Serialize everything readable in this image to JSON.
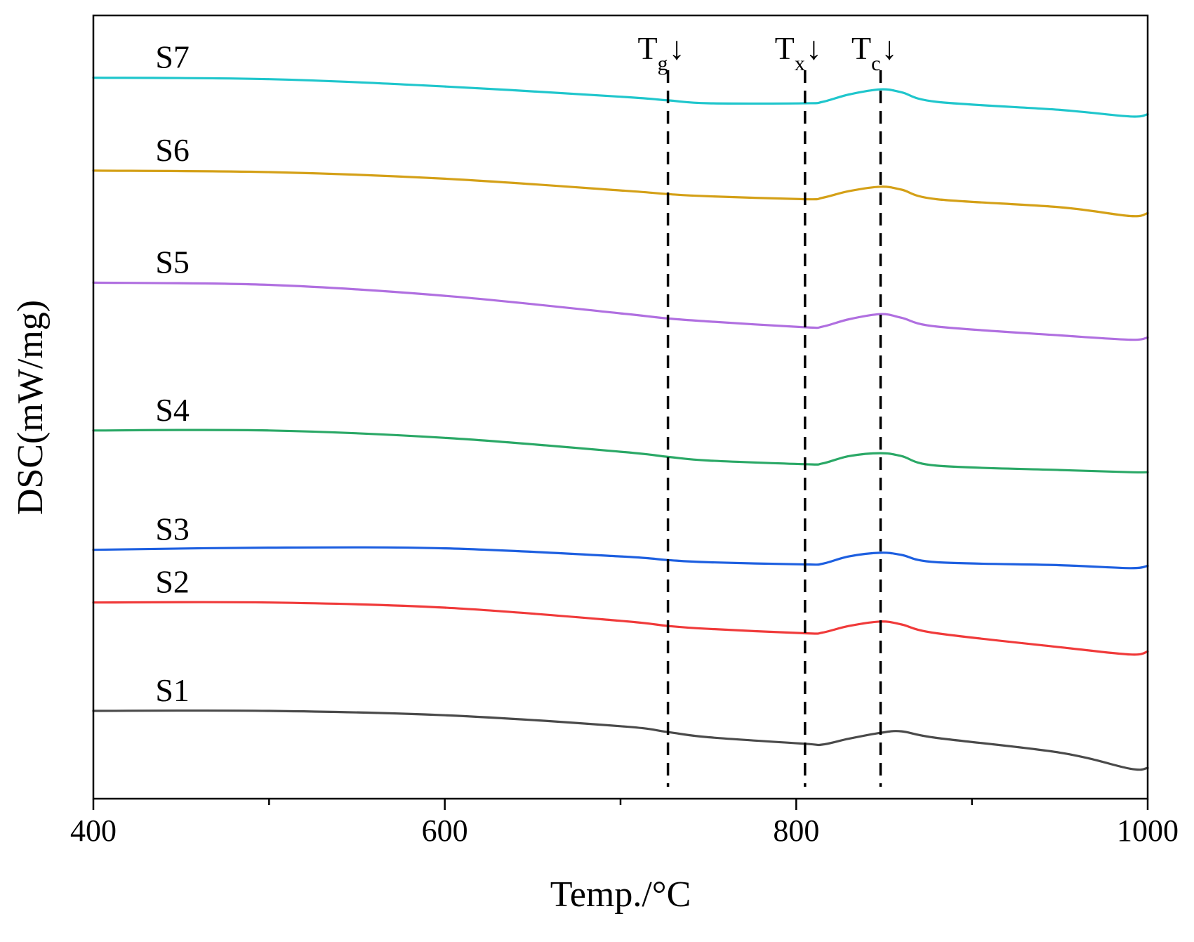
{
  "chart_data": {
    "type": "line",
    "title": "",
    "xlabel": "Temp./°C",
    "ylabel": "DSC(mW/mg)",
    "xlim": [
      400,
      1000
    ],
    "x_ticks": [
      400,
      600,
      800,
      1000
    ],
    "x_minor_ticks": [
      500,
      700,
      900
    ],
    "y_ticks_shown": false,
    "markers": [
      {
        "name": "Tg",
        "main": "T",
        "sub": "g",
        "arrow": "↓",
        "x": 727
      },
      {
        "name": "Tx",
        "main": "T",
        "sub": "x",
        "arrow": "↓",
        "x": 805
      },
      {
        "name": "Tc",
        "main": "T",
        "sub": "c",
        "arrow": "↓",
        "x": 848
      }
    ],
    "x": [
      400,
      500,
      600,
      700,
      727,
      750,
      805,
      815,
      830,
      848,
      860,
      880,
      950,
      990,
      1000
    ],
    "series": [
      {
        "name": "S7",
        "color": "#1fc6cc",
        "values": [
          86.5,
          86.3,
          85.3,
          83.9,
          83.4,
          83.0,
          83.0,
          83.2,
          84.2,
          84.9,
          84.5,
          83.2,
          82.1,
          81.2,
          81.5
        ]
      },
      {
        "name": "S6",
        "color": "#d4a017",
        "values": [
          73.8,
          73.6,
          72.7,
          71.1,
          70.6,
          70.3,
          69.9,
          70.1,
          71.0,
          71.6,
          71.2,
          69.9,
          68.8,
          67.6,
          68.0
        ]
      },
      {
        "name": "S5",
        "color": "#b06fe0",
        "values": [
          58.5,
          58.2,
          56.7,
          54.3,
          53.6,
          53.2,
          52.4,
          52.5,
          53.5,
          54.2,
          53.7,
          52.5,
          51.3,
          50.7,
          51.0
        ]
      },
      {
        "name": "S4",
        "color": "#2aa866",
        "values": [
          38.3,
          38.3,
          37.3,
          35.4,
          34.7,
          34.2,
          33.7,
          33.8,
          34.8,
          35.2,
          34.8,
          33.5,
          32.9,
          32.6,
          32.6
        ]
      },
      {
        "name": "S3",
        "color": "#1d5fe0",
        "values": [
          22.0,
          22.3,
          22.2,
          21.1,
          20.6,
          20.3,
          20.0,
          20.1,
          21.1,
          21.6,
          21.3,
          20.3,
          19.9,
          19.5,
          19.8
        ]
      },
      {
        "name": "S2",
        "color": "#f03a3a",
        "values": [
          14.8,
          14.8,
          14.1,
          12.3,
          11.6,
          11.2,
          10.6,
          10.7,
          11.6,
          12.2,
          11.8,
          10.6,
          8.7,
          7.7,
          8.1
        ]
      },
      {
        "name": "S1",
        "color": "#4a4a4a",
        "values": [
          0.0,
          0.0,
          -0.6,
          -2.1,
          -2.9,
          -3.6,
          -4.5,
          -4.6,
          -3.8,
          -3.0,
          -2.8,
          -3.7,
          -5.7,
          -7.9,
          -7.8
        ]
      }
    ]
  }
}
